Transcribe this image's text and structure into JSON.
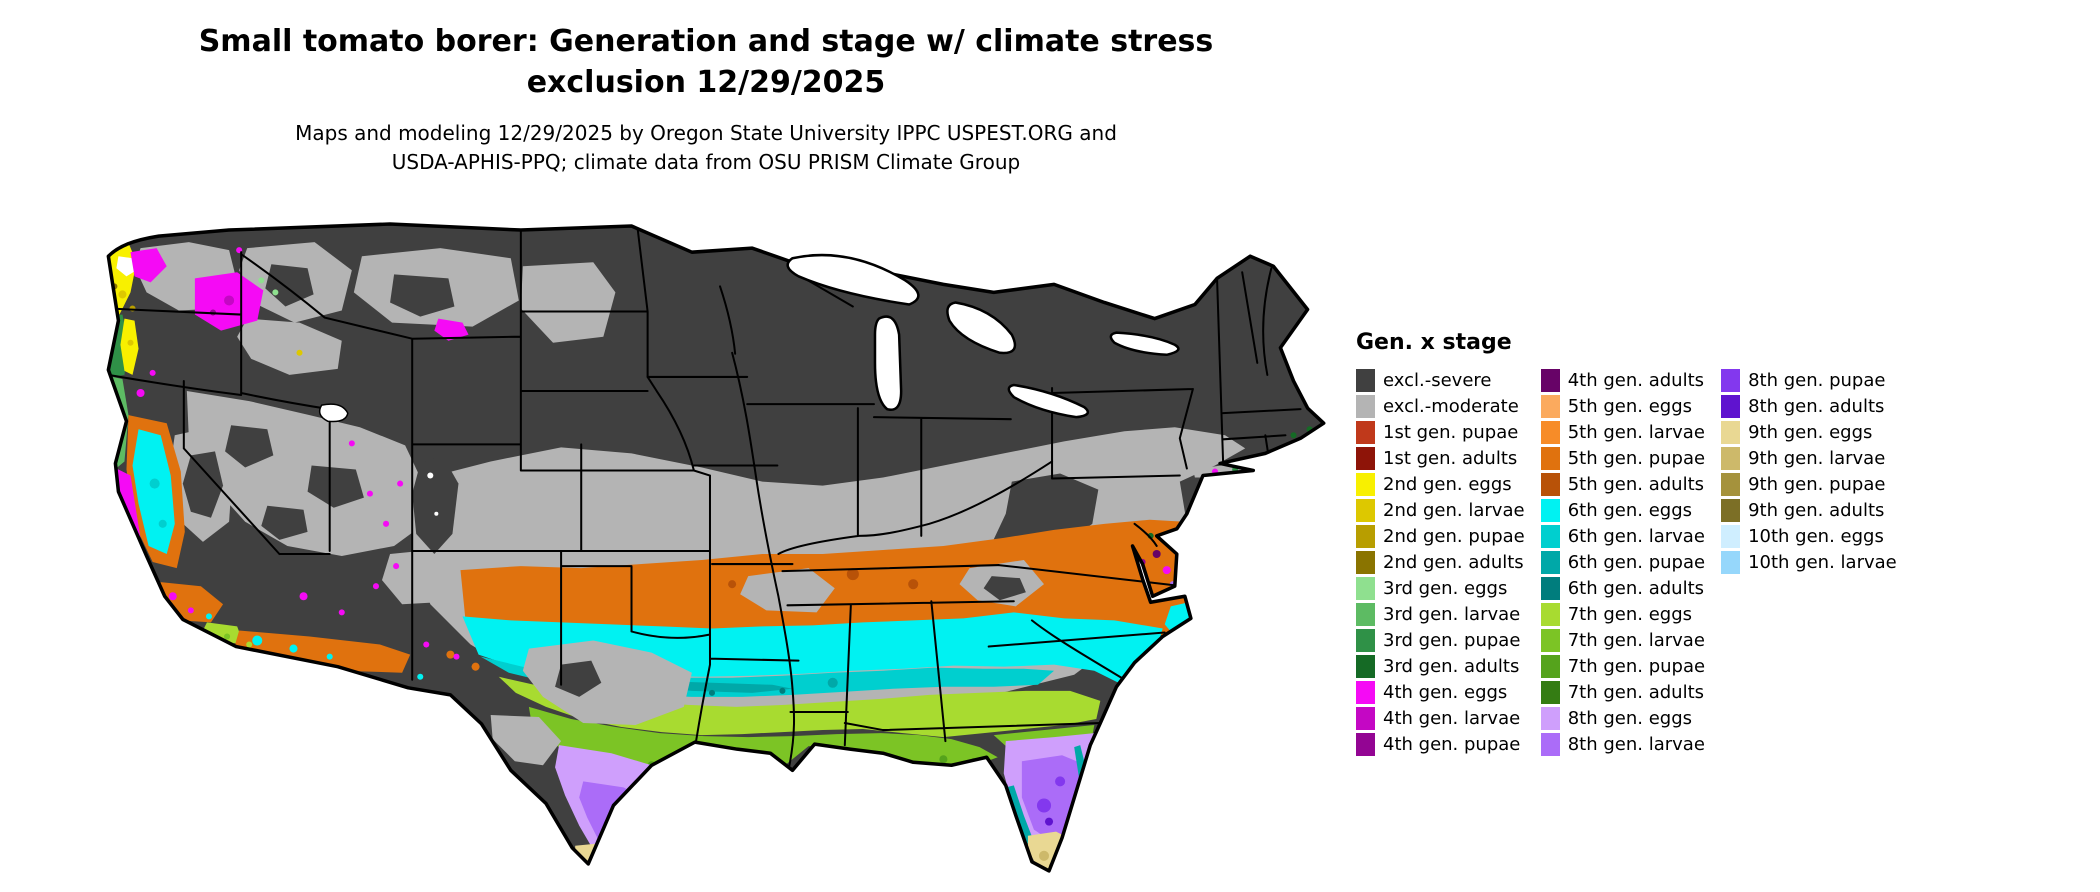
{
  "title": {
    "line1": "Small tomato borer: Generation and stage w/ climate stress",
    "line2": "exclusion 12/29/2025"
  },
  "subtitle": {
    "line1": "Maps and modeling 12/29/2025 by Oregon State University IPPC USPEST.ORG and",
    "line2": "USDA-APHIS-PPQ; climate data from OSU PRISM Climate Group"
  },
  "legend": {
    "title": "Gen. x stage",
    "columns": [
      [
        {
          "key": "excl_severe",
          "label": "excl.-severe",
          "color": "#404040"
        },
        {
          "key": "excl_moderate",
          "label": "excl.-moderate",
          "color": "#b4b4b4"
        },
        {
          "key": "gen1_pupae",
          "label": "1st gen. pupae",
          "color": "#c0391b"
        },
        {
          "key": "gen1_adults",
          "label": "1st gen. adults",
          "color": "#8e1408"
        },
        {
          "key": "gen2_eggs",
          "label": "2nd gen. eggs",
          "color": "#f8f000"
        },
        {
          "key": "gen2_larvae",
          "label": "2nd gen. larvae",
          "color": "#ddc800"
        },
        {
          "key": "gen2_pupae",
          "label": "2nd gen. pupae",
          "color": "#b89e00"
        },
        {
          "key": "gen2_adults",
          "label": "2nd gen. adults",
          "color": "#8a7400"
        },
        {
          "key": "gen3_eggs",
          "label": "3rd gen. eggs",
          "color": "#8fe08f"
        },
        {
          "key": "gen3_larvae",
          "label": "3rd gen. larvae",
          "color": "#5dbb63"
        },
        {
          "key": "gen3_pupae",
          "label": "3rd gen. pupae",
          "color": "#2f9147"
        },
        {
          "key": "gen3_adults",
          "label": "3rd gen. adults",
          "color": "#156a25"
        },
        {
          "key": "gen4_eggs",
          "label": "4th gen. eggs",
          "color": "#f50af5"
        },
        {
          "key": "gen4_larvae",
          "label": "4th gen. larvae",
          "color": "#c407c4"
        },
        {
          "key": "gen4_pupae",
          "label": "4th gen. pupae",
          "color": "#930593"
        }
      ],
      [
        {
          "key": "gen4_adults",
          "label": "4th gen. adults",
          "color": "#670367"
        },
        {
          "key": "gen5_eggs",
          "label": "5th gen. eggs",
          "color": "#fbaa5e"
        },
        {
          "key": "gen5_larvae",
          "label": "5th gen. larvae",
          "color": "#f78c28"
        },
        {
          "key": "gen5_pupae",
          "label": "5th gen. pupae",
          "color": "#e0720e"
        },
        {
          "key": "gen5_adults",
          "label": "5th gen. adults",
          "color": "#b85208"
        },
        {
          "key": "gen6_eggs",
          "label": "6th gen. eggs",
          "color": "#00f2f2"
        },
        {
          "key": "gen6_larvae",
          "label": "6th gen. larvae",
          "color": "#00cfcf"
        },
        {
          "key": "gen6_pupae",
          "label": "6th gen. pupae",
          "color": "#00a8a8"
        },
        {
          "key": "gen6_adults",
          "label": "6th gen. adults",
          "color": "#007d7d"
        },
        {
          "key": "gen7_eggs",
          "label": "7th gen. eggs",
          "color": "#a8db30"
        },
        {
          "key": "gen7_larvae",
          "label": "7th gen. larvae",
          "color": "#7cc425"
        },
        {
          "key": "gen7_pupae",
          "label": "7th gen. pupae",
          "color": "#55a31c"
        },
        {
          "key": "gen7_adults",
          "label": "7th gen. adults",
          "color": "#347c13"
        },
        {
          "key": "gen8_eggs",
          "label": "8th gen. eggs",
          "color": "#cf9ffc"
        },
        {
          "key": "gen8_larvae",
          "label": "8th gen. larvae",
          "color": "#ab6cf8"
        }
      ],
      [
        {
          "key": "gen8_pupae",
          "label": "8th gen. pupae",
          "color": "#8338ee"
        },
        {
          "key": "gen8_adults",
          "label": "8th gen. adults",
          "color": "#5f13cf"
        },
        {
          "key": "gen9_eggs",
          "label": "9th gen. eggs",
          "color": "#e9d893"
        },
        {
          "key": "gen9_larvae",
          "label": "9th gen. larvae",
          "color": "#cdb96a"
        },
        {
          "key": "gen9_pupae",
          "label": "9th gen. pupae",
          "color": "#a5923c"
        },
        {
          "key": "gen9_adults",
          "label": "9th gen. adults",
          "color": "#7c6f26"
        },
        {
          "key": "gen10_eggs",
          "label": "10th gen. eggs",
          "color": "#cfeeff"
        },
        {
          "key": "gen10_larvae",
          "label": "10th gen. larvae",
          "color": "#96d7fb"
        }
      ]
    ]
  },
  "map": {
    "description": "Continental US raster map of small tomato borer generation and stage with climate stress exclusion",
    "border_color": "#000000",
    "water_color": "#ffffff"
  }
}
